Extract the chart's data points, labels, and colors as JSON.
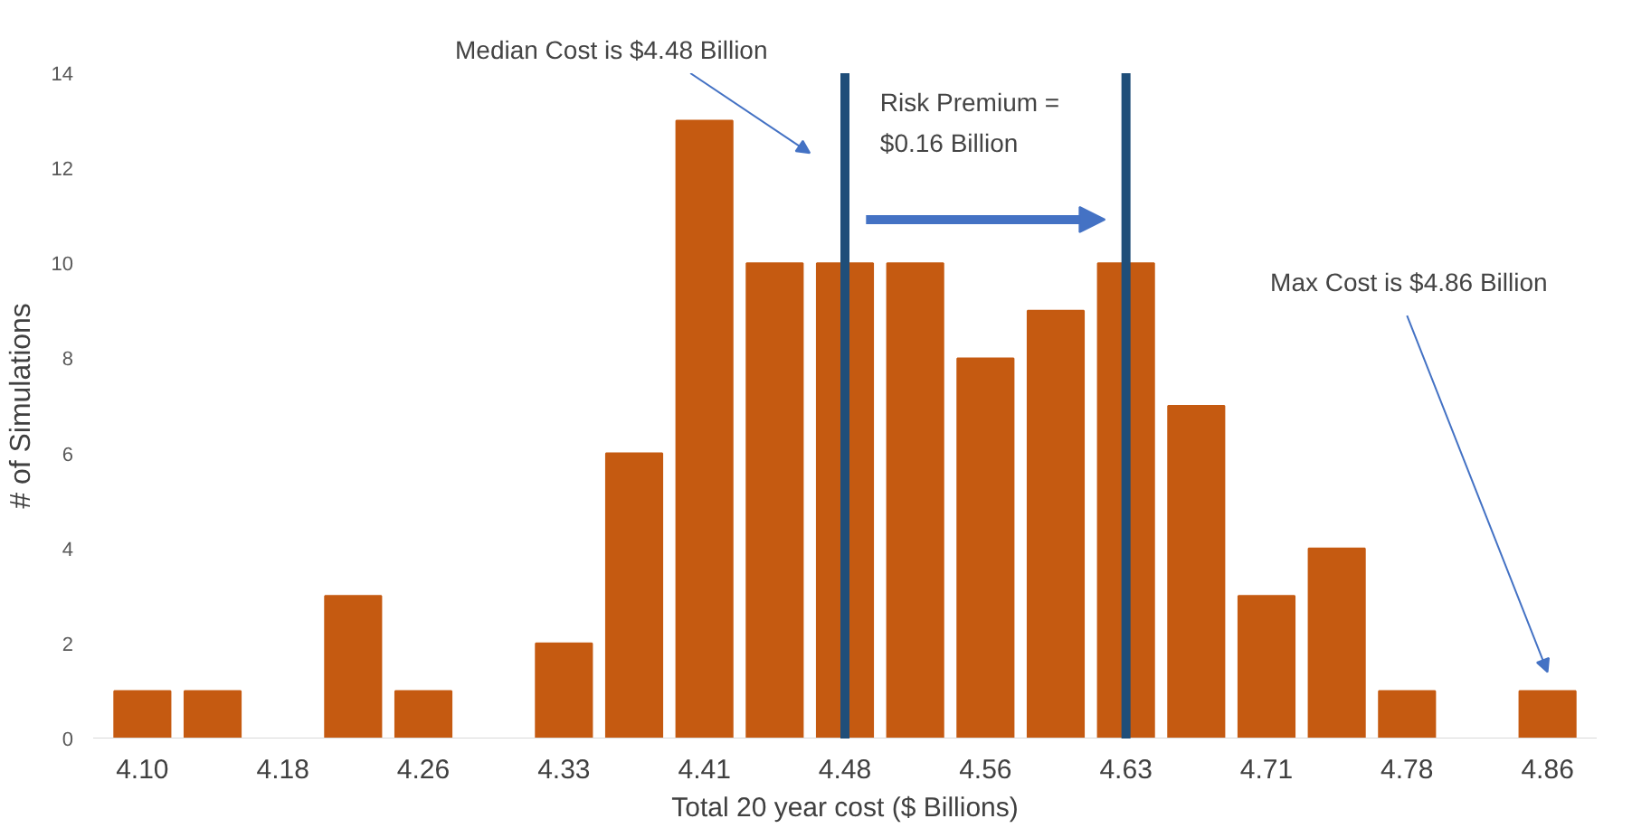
{
  "chart_data": {
    "type": "bar",
    "xlabel": "Total 20 year cost ($ Billions)",
    "ylabel": "# of Simulations",
    "categories": [
      "4.10",
      null,
      "4.18",
      null,
      "4.26",
      null,
      "4.33",
      null,
      "4.41",
      null,
      "4.48",
      null,
      "4.56",
      null,
      "4.63",
      null,
      "4.71",
      null,
      "4.78",
      null,
      "4.86"
    ],
    "values": [
      1,
      1,
      0,
      3,
      1,
      0,
      2,
      6,
      13,
      10,
      10,
      10,
      8,
      9,
      10,
      7,
      3,
      4,
      1,
      0,
      1
    ],
    "color": "#c55a11",
    "ylim": [
      0,
      14
    ],
    "yticks": [
      0,
      2,
      4,
      6,
      8,
      10,
      12,
      14
    ],
    "grid": false,
    "ref_lines": [
      {
        "axis": "x",
        "value": "4.48",
        "color": "#1f4e79"
      },
      {
        "axis": "x",
        "value": "4.63",
        "color": "#1f4e79"
      }
    ],
    "annotations": [
      "Median Cost is $4.48 Billion",
      "Risk Premium =\n$0.16 Billion",
      "Max Cost is $4.86 Billion"
    ]
  }
}
